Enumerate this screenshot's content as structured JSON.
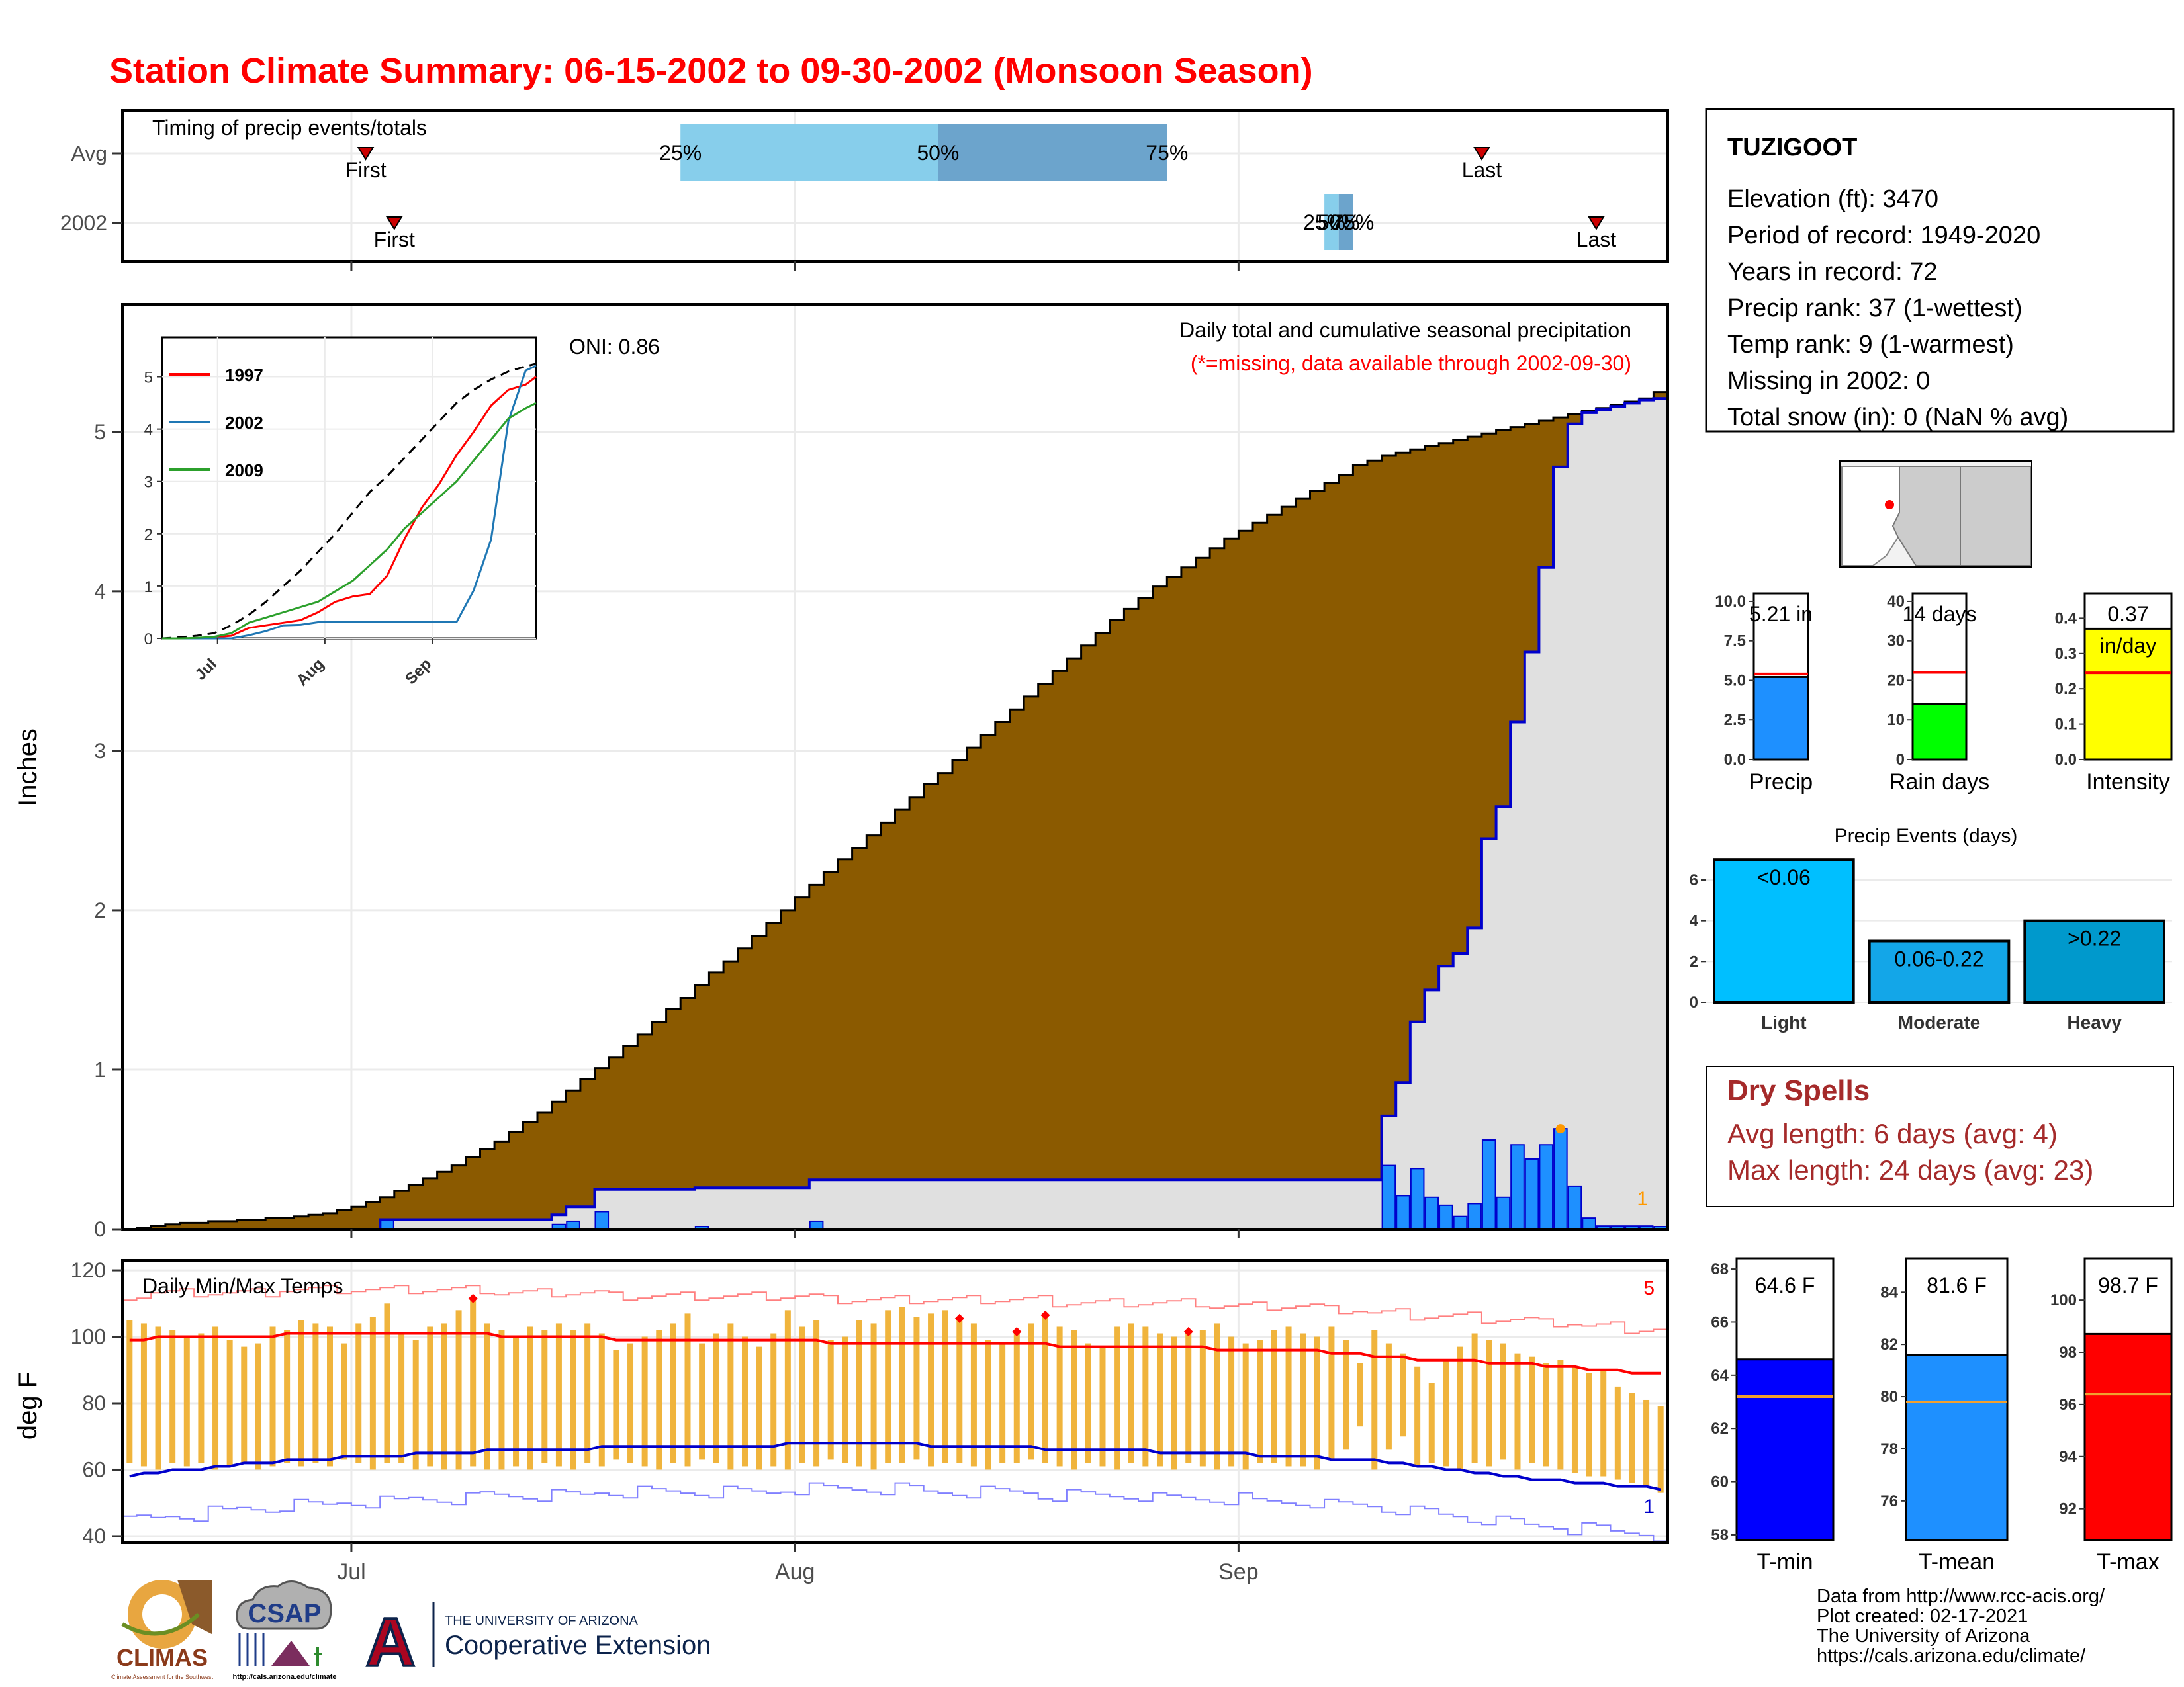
{
  "title": "Station Climate Summary: 06-15-2002 to 09-30-2002 (Monsoon Season)",
  "colors": {
    "title": "#ff0000",
    "brown": "#8b5a00",
    "daily_bar": "#1e90ff",
    "daily_outline": "#0000cc",
    "prior_fill": "#e0e0e0",
    "surplus": "#008000",
    "grid": "#ebebeb",
    "temp_bar": "#f0b43c",
    "tmax": "#ff0000",
    "tmin": "#0000cc",
    "dry": "#a52a2a",
    "marker": "#cc0000"
  },
  "x_axis": {
    "labels": [
      "Jul",
      "Aug",
      "Sep"
    ],
    "days": [
      16,
      47,
      78
    ],
    "total_days": 108
  },
  "timing_panel": {
    "label": "Timing of precip events/totals",
    "rows": [
      "Avg",
      "2002"
    ],
    "avg": {
      "first_day": 17,
      "last_day": 95,
      "q25": 39,
      "q50": 57,
      "q75": 73
    },
    "y2002": {
      "first_day": 19,
      "last_day": 103,
      "q25": 84,
      "q50": 85,
      "q75": 86
    },
    "first_label": "First",
    "last_label": "Last",
    "pct_labels": [
      "25%",
      "50%",
      "75%"
    ]
  },
  "precip_panel": {
    "ylabel": "Inches",
    "yticks": [
      0,
      1,
      2,
      3,
      4,
      5
    ],
    "ylim": [
      0,
      5.8
    ],
    "info_title": "Daily total and cumulative seasonal precipitation",
    "info_note": "(*=missing, data available through 2002-09-30)",
    "oni": "ONI: 0.86",
    "corner_count": "1"
  },
  "inset": {
    "yticks": [
      0,
      1,
      2,
      3,
      4,
      5
    ],
    "xticks": [
      "Jul",
      "Aug",
      "Sep"
    ],
    "legend": [
      {
        "name": "1997",
        "color": "#ff0000"
      },
      {
        "name": "2002",
        "color": "#1f77b4"
      },
      {
        "name": "2009",
        "color": "#2ca02c"
      }
    ]
  },
  "temp_panel": {
    "ylabel": "deg F",
    "label": "Daily Min/Max Temps",
    "yticks": [
      40,
      60,
      80,
      100,
      120
    ],
    "ylim": [
      38,
      123
    ],
    "count_high": "5",
    "count_low": "1"
  },
  "station": {
    "name": "TUZIGOOT",
    "lines": [
      "Elevation (ft): 3470",
      "Period of record: 1949-2020",
      "Years in record: 72",
      "Precip rank: 37 (1-wettest)",
      "Temp rank: 9 (1-warmest)",
      "Missing in 2002: 0",
      "Total snow (in): 0 (NaN % avg)"
    ]
  },
  "mini_bars": [
    {
      "name": "Precip",
      "value": 5.21,
      "avg": 5.4,
      "label": "5.21 in",
      "yticks": [
        "0.0",
        "2.5",
        "5.0",
        "7.5",
        "10.0"
      ],
      "ymax": 10.5,
      "color": "#1e90ff"
    },
    {
      "name": "Rain days",
      "value": 14,
      "avg": 22,
      "label": "14 days",
      "yticks": [
        "0",
        "10",
        "20",
        "30",
        "40"
      ],
      "ymax": 42,
      "color": "#00ff00"
    },
    {
      "name": "Intensity",
      "value": 0.37,
      "avg": 0.245,
      "label": "0.37",
      "label2": "in/day",
      "yticks": [
        "0.0",
        "0.1",
        "0.2",
        "0.3",
        "0.4"
      ],
      "ymax": 0.47,
      "color": "#ffff00"
    }
  ],
  "precip_events": {
    "title": "Precip Events (days)",
    "yticks": [
      0,
      2,
      4,
      6
    ],
    "ymax": 7.2,
    "bars": [
      {
        "name": "Light",
        "value": 7,
        "label": "<0.06",
        "color": "#00bfff"
      },
      {
        "name": "Moderate",
        "value": 3,
        "label": "0.06-0.22",
        "color": "#13a6e8"
      },
      {
        "name": "Heavy",
        "value": 4,
        "label": ">0.22",
        "color": "#0099cc"
      }
    ]
  },
  "dry_spells": {
    "title": "Dry Spells",
    "avg_line": "Avg length: 6 days (avg: 4)",
    "max_line": "Max length: 24 days (avg: 23)"
  },
  "temp_bars": [
    {
      "name": "T-min",
      "value": 64.6,
      "avg": 63.2,
      "label": "64.6 F",
      "yticks": [
        58,
        60,
        62,
        64,
        66,
        68
      ],
      "ymin": 57.8,
      "ymax": 68.4,
      "color": "#0000ff"
    },
    {
      "name": "T-mean",
      "value": 81.6,
      "avg": 79.8,
      "label": "81.6 F",
      "yticks": [
        76,
        78,
        80,
        82,
        84
      ],
      "ymin": 74.5,
      "ymax": 85.3,
      "color": "#1e90ff"
    },
    {
      "name": "T-max",
      "value": 98.7,
      "avg": 96.4,
      "label": "98.7 F",
      "yticks": [
        92,
        94,
        96,
        98,
        100
      ],
      "ymin": 90.8,
      "ymax": 101.6,
      "color": "#ff0000"
    }
  ],
  "footer": {
    "lines": [
      "Data from http://www.rcc-acis.org/",
      "Plot created: 02-17-2021",
      "The University of Arizona",
      "https://cals.arizona.edu/climate/"
    ]
  },
  "logos": {
    "climas": "CLIMAS",
    "climas_sub": "Climate Assessment for the Southwest",
    "csap": "CSAP",
    "csap_url": "http://cals.arizona.edu/climate",
    "ua_small": "THE UNIVERSITY OF ARIZONA",
    "ua_big": "Cooperative Extension",
    "ua_letter": "A"
  },
  "chart_data": [
    {
      "type": "area",
      "title": "Daily total and cumulative seasonal precipitation",
      "xlabel": "",
      "ylabel": "Inches",
      "ylim": [
        0,
        5.8
      ],
      "x_start": "2002-06-15",
      "series": [
        {
          "name": "Average cumulative precipitation",
          "values": [
            0,
            0.01,
            0.02,
            0.03,
            0.04,
            0.04,
            0.05,
            0.05,
            0.06,
            0.06,
            0.07,
            0.07,
            0.08,
            0.09,
            0.1,
            0.12,
            0.14,
            0.17,
            0.2,
            0.24,
            0.28,
            0.32,
            0.36,
            0.4,
            0.45,
            0.5,
            0.55,
            0.61,
            0.67,
            0.73,
            0.8,
            0.87,
            0.94,
            1.01,
            1.08,
            1.15,
            1.22,
            1.3,
            1.38,
            1.45,
            1.53,
            1.61,
            1.68,
            1.76,
            1.84,
            1.92,
            2.0,
            2.08,
            2.16,
            2.24,
            2.32,
            2.39,
            2.47,
            2.55,
            2.63,
            2.71,
            2.79,
            2.86,
            2.94,
            3.02,
            3.1,
            3.18,
            3.26,
            3.34,
            3.42,
            3.5,
            3.58,
            3.66,
            3.74,
            3.82,
            3.89,
            3.96,
            4.03,
            4.09,
            4.15,
            4.21,
            4.27,
            4.33,
            4.38,
            4.43,
            4.48,
            4.53,
            4.58,
            4.63,
            4.68,
            4.73,
            4.79,
            4.82,
            4.85,
            4.87,
            4.89,
            4.91,
            4.93,
            4.95,
            4.97,
            4.99,
            5.01,
            5.03,
            5.05,
            5.07,
            5.09,
            5.11,
            5.13,
            5.15,
            5.17,
            5.19,
            5.21,
            5.25
          ]
        },
        {
          "name": "2002 cumulative precipitation",
          "values": [
            0,
            0,
            0,
            0,
            0,
            0,
            0,
            0,
            0,
            0,
            0,
            0,
            0,
            0,
            0,
            0,
            0,
            0,
            0.06,
            0.06,
            0.06,
            0.06,
            0.06,
            0.06,
            0.06,
            0.06,
            0.06,
            0.06,
            0.06,
            0.06,
            0.09,
            0.14,
            0.14,
            0.25,
            0.25,
            0.25,
            0.25,
            0.25,
            0.25,
            0.25,
            0.26,
            0.26,
            0.26,
            0.26,
            0.26,
            0.26,
            0.26,
            0.26,
            0.31,
            0.31,
            0.31,
            0.31,
            0.31,
            0.31,
            0.31,
            0.31,
            0.31,
            0.31,
            0.31,
            0.31,
            0.31,
            0.31,
            0.31,
            0.31,
            0.31,
            0.31,
            0.31,
            0.31,
            0.31,
            0.31,
            0.31,
            0.31,
            0.31,
            0.31,
            0.31,
            0.31,
            0.31,
            0.31,
            0.31,
            0.31,
            0.31,
            0.31,
            0.31,
            0.31,
            0.31,
            0.31,
            0.31,
            0.31,
            0.71,
            0.92,
            1.3,
            1.5,
            1.65,
            1.73,
            1.89,
            2.45,
            2.65,
            3.18,
            3.62,
            4.15,
            4.78,
            5.05,
            5.12,
            5.14,
            5.16,
            5.18,
            5.2,
            5.21
          ]
        }
      ]
    },
    {
      "type": "line",
      "title": "",
      "xlabel": "",
      "ylabel": "",
      "ylim": [
        0,
        5.5
      ],
      "x": [
        0,
        5,
        10,
        15,
        20,
        25,
        30,
        35,
        40,
        45,
        50,
        55,
        60,
        65,
        70,
        75,
        80,
        85,
        90,
        95,
        100,
        105,
        108
      ],
      "series": [
        {
          "name": "",
          "values": [
            0,
            0.02,
            0.05,
            0.1,
            0.25,
            0.45,
            0.7,
            1.0,
            1.3,
            1.65,
            2.0,
            2.4,
            2.8,
            3.1,
            3.45,
            3.8,
            4.15,
            4.5,
            4.75,
            4.95,
            5.1,
            5.2,
            5.25
          ]
        },
        {
          "name": "1997",
          "values": [
            0,
            0,
            0,
            0.02,
            0.05,
            0.2,
            0.25,
            0.3,
            0.35,
            0.5,
            0.7,
            0.8,
            0.85,
            1.2,
            1.9,
            2.5,
            2.95,
            3.5,
            3.95,
            4.45,
            4.75,
            4.85,
            5.0
          ]
        },
        {
          "name": "2002",
          "values": [
            0,
            0,
            0,
            0,
            0,
            0.06,
            0.14,
            0.25,
            0.26,
            0.31,
            0.31,
            0.31,
            0.31,
            0.31,
            0.31,
            0.31,
            0.31,
            0.31,
            0.92,
            1.89,
            4.15,
            5.12,
            5.21
          ]
        },
        {
          "name": "2009",
          "values": [
            0,
            0,
            0.01,
            0.03,
            0.1,
            0.3,
            0.4,
            0.5,
            0.6,
            0.7,
            0.9,
            1.1,
            1.4,
            1.7,
            2.1,
            2.4,
            2.7,
            3.0,
            3.4,
            3.8,
            4.2,
            4.4,
            4.5
          ]
        }
      ]
    },
    {
      "type": "bar",
      "title": "Daily Min/Max Temps",
      "xlabel": "",
      "ylabel": "deg F",
      "ylim": [
        38,
        123
      ],
      "x_start": "2002-06-15",
      "series": [
        {
          "name": "Tmax",
          "values": [
            105,
            104,
            103,
            102,
            100,
            101,
            103,
            99,
            97,
            98,
            103,
            102,
            105,
            104,
            103,
            98,
            104,
            106,
            110,
            101,
            99,
            103,
            104,
            108,
            111,
            104,
            102,
            100,
            103,
            102,
            104,
            102,
            104,
            101,
            96,
            98,
            100,
            102,
            104,
            107,
            98,
            101,
            104,
            100,
            97,
            101,
            108,
            103,
            105,
            99,
            100,
            105,
            104,
            108,
            109,
            106,
            107,
            108,
            105,
            104,
            99,
            98,
            101,
            104,
            106,
            103,
            102,
            98,
            97,
            103,
            104,
            103,
            101,
            100,
            101,
            102,
            104,
            100,
            98,
            99,
            102,
            103,
            101,
            100,
            103,
            99,
            92,
            102,
            98,
            95,
            91,
            86,
            93,
            97,
            101,
            99,
            98,
            95,
            94,
            92,
            93,
            91,
            89,
            90,
            85,
            83,
            81,
            79
          ]
        },
        {
          "name": "Tmin",
          "values": [
            62,
            61,
            60,
            62,
            61,
            62,
            60,
            61,
            62,
            60,
            61,
            62,
            61,
            62,
            61,
            63,
            62,
            60,
            62,
            62,
            60,
            61,
            60,
            60,
            61,
            60,
            60,
            61,
            60,
            62,
            61,
            60,
            62,
            61,
            63,
            62,
            61,
            60,
            62,
            61,
            63,
            62,
            60,
            61,
            60,
            61,
            60,
            62,
            61,
            63,
            62,
            61,
            60,
            62,
            62,
            63,
            61,
            62,
            62,
            61,
            60,
            62,
            62,
            63,
            62,
            61,
            60,
            62,
            61,
            60,
            62,
            61,
            61,
            60,
            62,
            61,
            60,
            61,
            60,
            62,
            62,
            61,
            61,
            60,
            63,
            66,
            73,
            60,
            66,
            70,
            61,
            62,
            61,
            60,
            62,
            61,
            63,
            60,
            62,
            61,
            60,
            59,
            58,
            58,
            57,
            56,
            55,
            53
          ]
        },
        {
          "name": "Avg Tmax",
          "values": [
            99,
            99,
            100,
            100,
            100,
            100,
            100,
            100,
            100,
            100,
            100,
            101,
            101,
            101,
            101,
            101,
            101,
            101,
            101,
            101,
            101,
            101,
            101,
            101,
            101,
            101,
            100,
            100,
            100,
            100,
            100,
            100,
            100,
            100,
            99,
            99,
            99,
            99,
            99,
            99,
            99,
            99,
            99,
            99,
            99,
            99,
            99,
            99,
            99,
            98,
            98,
            98,
            98,
            98,
            98,
            98,
            98,
            98,
            98,
            98,
            98,
            98,
            98,
            98,
            98,
            97,
            97,
            97,
            97,
            97,
            97,
            97,
            97,
            97,
            97,
            97,
            96,
            96,
            96,
            96,
            96,
            96,
            96,
            96,
            95,
            95,
            95,
            94,
            94,
            94,
            93,
            93,
            93,
            93,
            93,
            92,
            92,
            92,
            92,
            91,
            91,
            91,
            90,
            90,
            90,
            89,
            89,
            89
          ]
        },
        {
          "name": "Avg Tmin",
          "values": [
            58,
            59,
            59,
            60,
            60,
            60,
            61,
            61,
            62,
            62,
            62,
            63,
            63,
            63,
            63,
            64,
            64,
            64,
            64,
            64,
            65,
            65,
            65,
            65,
            65,
            66,
            66,
            66,
            66,
            66,
            66,
            66,
            66,
            67,
            67,
            67,
            67,
            67,
            67,
            67,
            67,
            67,
            67,
            67,
            67,
            67,
            68,
            68,
            68,
            68,
            68,
            68,
            68,
            68,
            68,
            68,
            67,
            67,
            67,
            67,
            67,
            67,
            67,
            67,
            66,
            66,
            66,
            66,
            66,
            66,
            66,
            66,
            65,
            65,
            65,
            65,
            65,
            65,
            65,
            64,
            64,
            64,
            64,
            64,
            63,
            63,
            63,
            63,
            62,
            62,
            61,
            61,
            60,
            60,
            59,
            59,
            58,
            58,
            57,
            57,
            57,
            56,
            56,
            56,
            55,
            55,
            55,
            54
          ]
        }
      ]
    },
    {
      "type": "bar",
      "title": "",
      "categories": [
        "Precip",
        "Rain days",
        "Intensity"
      ],
      "values": [
        5.21,
        14,
        0.37
      ]
    },
    {
      "type": "bar",
      "title": "Precip Events (days)",
      "categories": [
        "Light",
        "Moderate",
        "Heavy"
      ],
      "values": [
        7,
        3,
        4
      ]
    },
    {
      "type": "bar",
      "title": "",
      "categories": [
        "T-min",
        "T-mean",
        "T-max"
      ],
      "values": [
        64.6,
        81.6,
        98.7
      ]
    }
  ]
}
